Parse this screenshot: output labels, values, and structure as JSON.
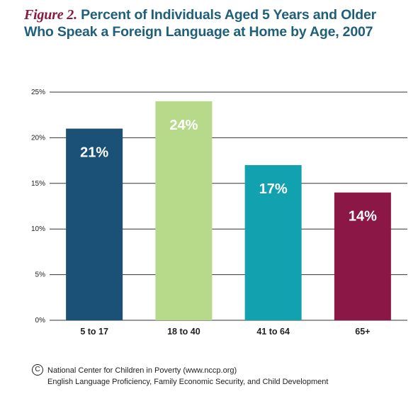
{
  "header": {
    "figure_label": "Figure 2.",
    "title_line1": "Percent of Individuals Aged 5 Years and Older",
    "title_line2": "Who Speak a Foreign Language at Home by Age, 2007"
  },
  "footer": {
    "copyright_symbol": "C",
    "line1": "National Center for Children in Poverty (www.nccp.org)",
    "line2": "English Language Proficiency, Family Economic Security, and Child Development"
  },
  "colors": {
    "title": "#1f5f7a",
    "figure_label": "#8b1a3f",
    "gridline": "#333333",
    "axis_text": "#222222"
  },
  "chart_data": {
    "type": "bar",
    "title": "Percent of Individuals Aged 5 Years and Older Who Speak a Foreign Language at Home by Age, 2007",
    "categories": [
      "5 to 17",
      "18 to 40",
      "41 to 64",
      "65+"
    ],
    "values": [
      21,
      24,
      17,
      14
    ],
    "value_labels": [
      "21%",
      "24%",
      "17%",
      "14%"
    ],
    "bar_colors": [
      "#1b5177",
      "#b6d98a",
      "#12a1ae",
      "#8b1746"
    ],
    "y_ticks": [
      0,
      5,
      10,
      15,
      20,
      25
    ],
    "y_tick_labels": [
      "0%",
      "5%",
      "10%",
      "15%",
      "20%",
      "25%"
    ],
    "ylim": [
      0,
      25
    ],
    "xlabel": "",
    "ylabel": "",
    "grid": true,
    "legend": "none"
  }
}
